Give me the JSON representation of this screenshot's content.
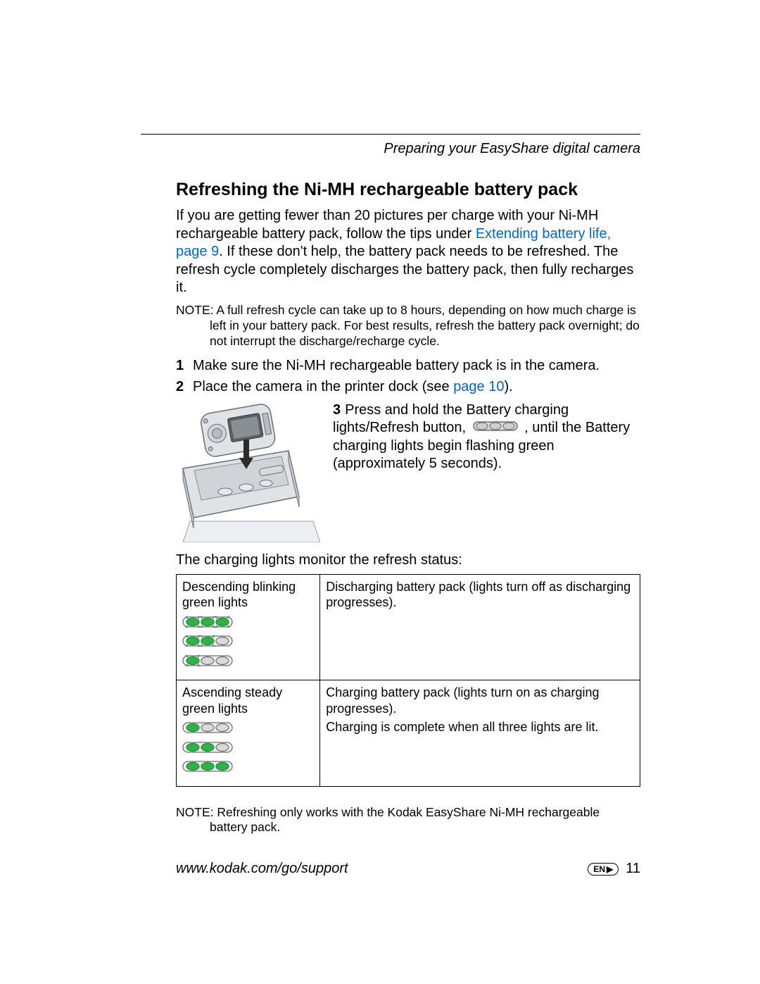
{
  "colors": {
    "text": "#000000",
    "link": "#0066cc",
    "grid": "#000000",
    "pill_outline": "#6d6d6d",
    "pill_fill_off": "#d9d9d9",
    "green_on": "#2fb24a",
    "green_dark": "#1f8a36",
    "illus_body": "#dfe3e6",
    "illus_edge": "#6a6e72",
    "illus_dark": "#9aa0a4",
    "illus_tray": "#eceff1"
  },
  "running_head": "Preparing your EasyShare digital camera",
  "heading": "Refreshing the Ni-MH rechargeable battery pack",
  "intro": {
    "part1": "If you are getting fewer than 20 pictures per charge with your Ni-MH rechargeable battery pack, follow the tips under ",
    "link1": "Extending battery life, page 9",
    "part2": ". If these don't help, the battery pack needs to be refreshed. The refresh cycle completely discharges the battery pack, then fully recharges it."
  },
  "note1": {
    "label": "NOTE:",
    "text": "A full refresh cycle can take up to 8 hours, depending on how much charge is left in your battery pack. For best results, refresh the battery pack overnight; do not interrupt the discharge/recharge cycle."
  },
  "steps": {
    "s1": {
      "n": "1",
      "text": "Make sure the Ni-MH rechargeable battery pack is in the camera."
    },
    "s2": {
      "n": "2",
      "pre": "Place the camera in the printer dock (see ",
      "link": "page 10",
      "post": ")."
    },
    "s3": {
      "n": "3",
      "pre": "Press and hold the Battery charging lights/Refresh button, ",
      "post": " , until the Battery charging lights begin flashing green (approximately 5 seconds)."
    }
  },
  "caption": "The charging lights monitor the refresh status:",
  "table": {
    "r1c1": "Descending blinking green lights",
    "r1c2": "Discharging battery pack (lights turn off as discharging progresses).",
    "r2c1": "Ascending steady green lights",
    "r2c2a": "Charging battery pack (lights turn on as charging progresses).",
    "r2c2b": "Charging is complete when all three lights are lit."
  },
  "note2": {
    "label": "NOTE:",
    "text": "Refreshing only works with the Kodak EasyShare Ni-MH rechargeable battery pack."
  },
  "footer": {
    "url": "www.kodak.com/go/support",
    "lang": "EN",
    "page": "11"
  },
  "lights": {
    "descending": [
      {
        "on": [
          true,
          true,
          true
        ],
        "blink": true
      },
      {
        "on": [
          true,
          true,
          false
        ],
        "blink": true
      },
      {
        "on": [
          true,
          false,
          false
        ],
        "blink": true
      }
    ],
    "ascending": [
      {
        "on": [
          true,
          false,
          false
        ],
        "blink": false
      },
      {
        "on": [
          true,
          true,
          false
        ],
        "blink": false
      },
      {
        "on": [
          true,
          true,
          true
        ],
        "blink": false
      }
    ]
  }
}
